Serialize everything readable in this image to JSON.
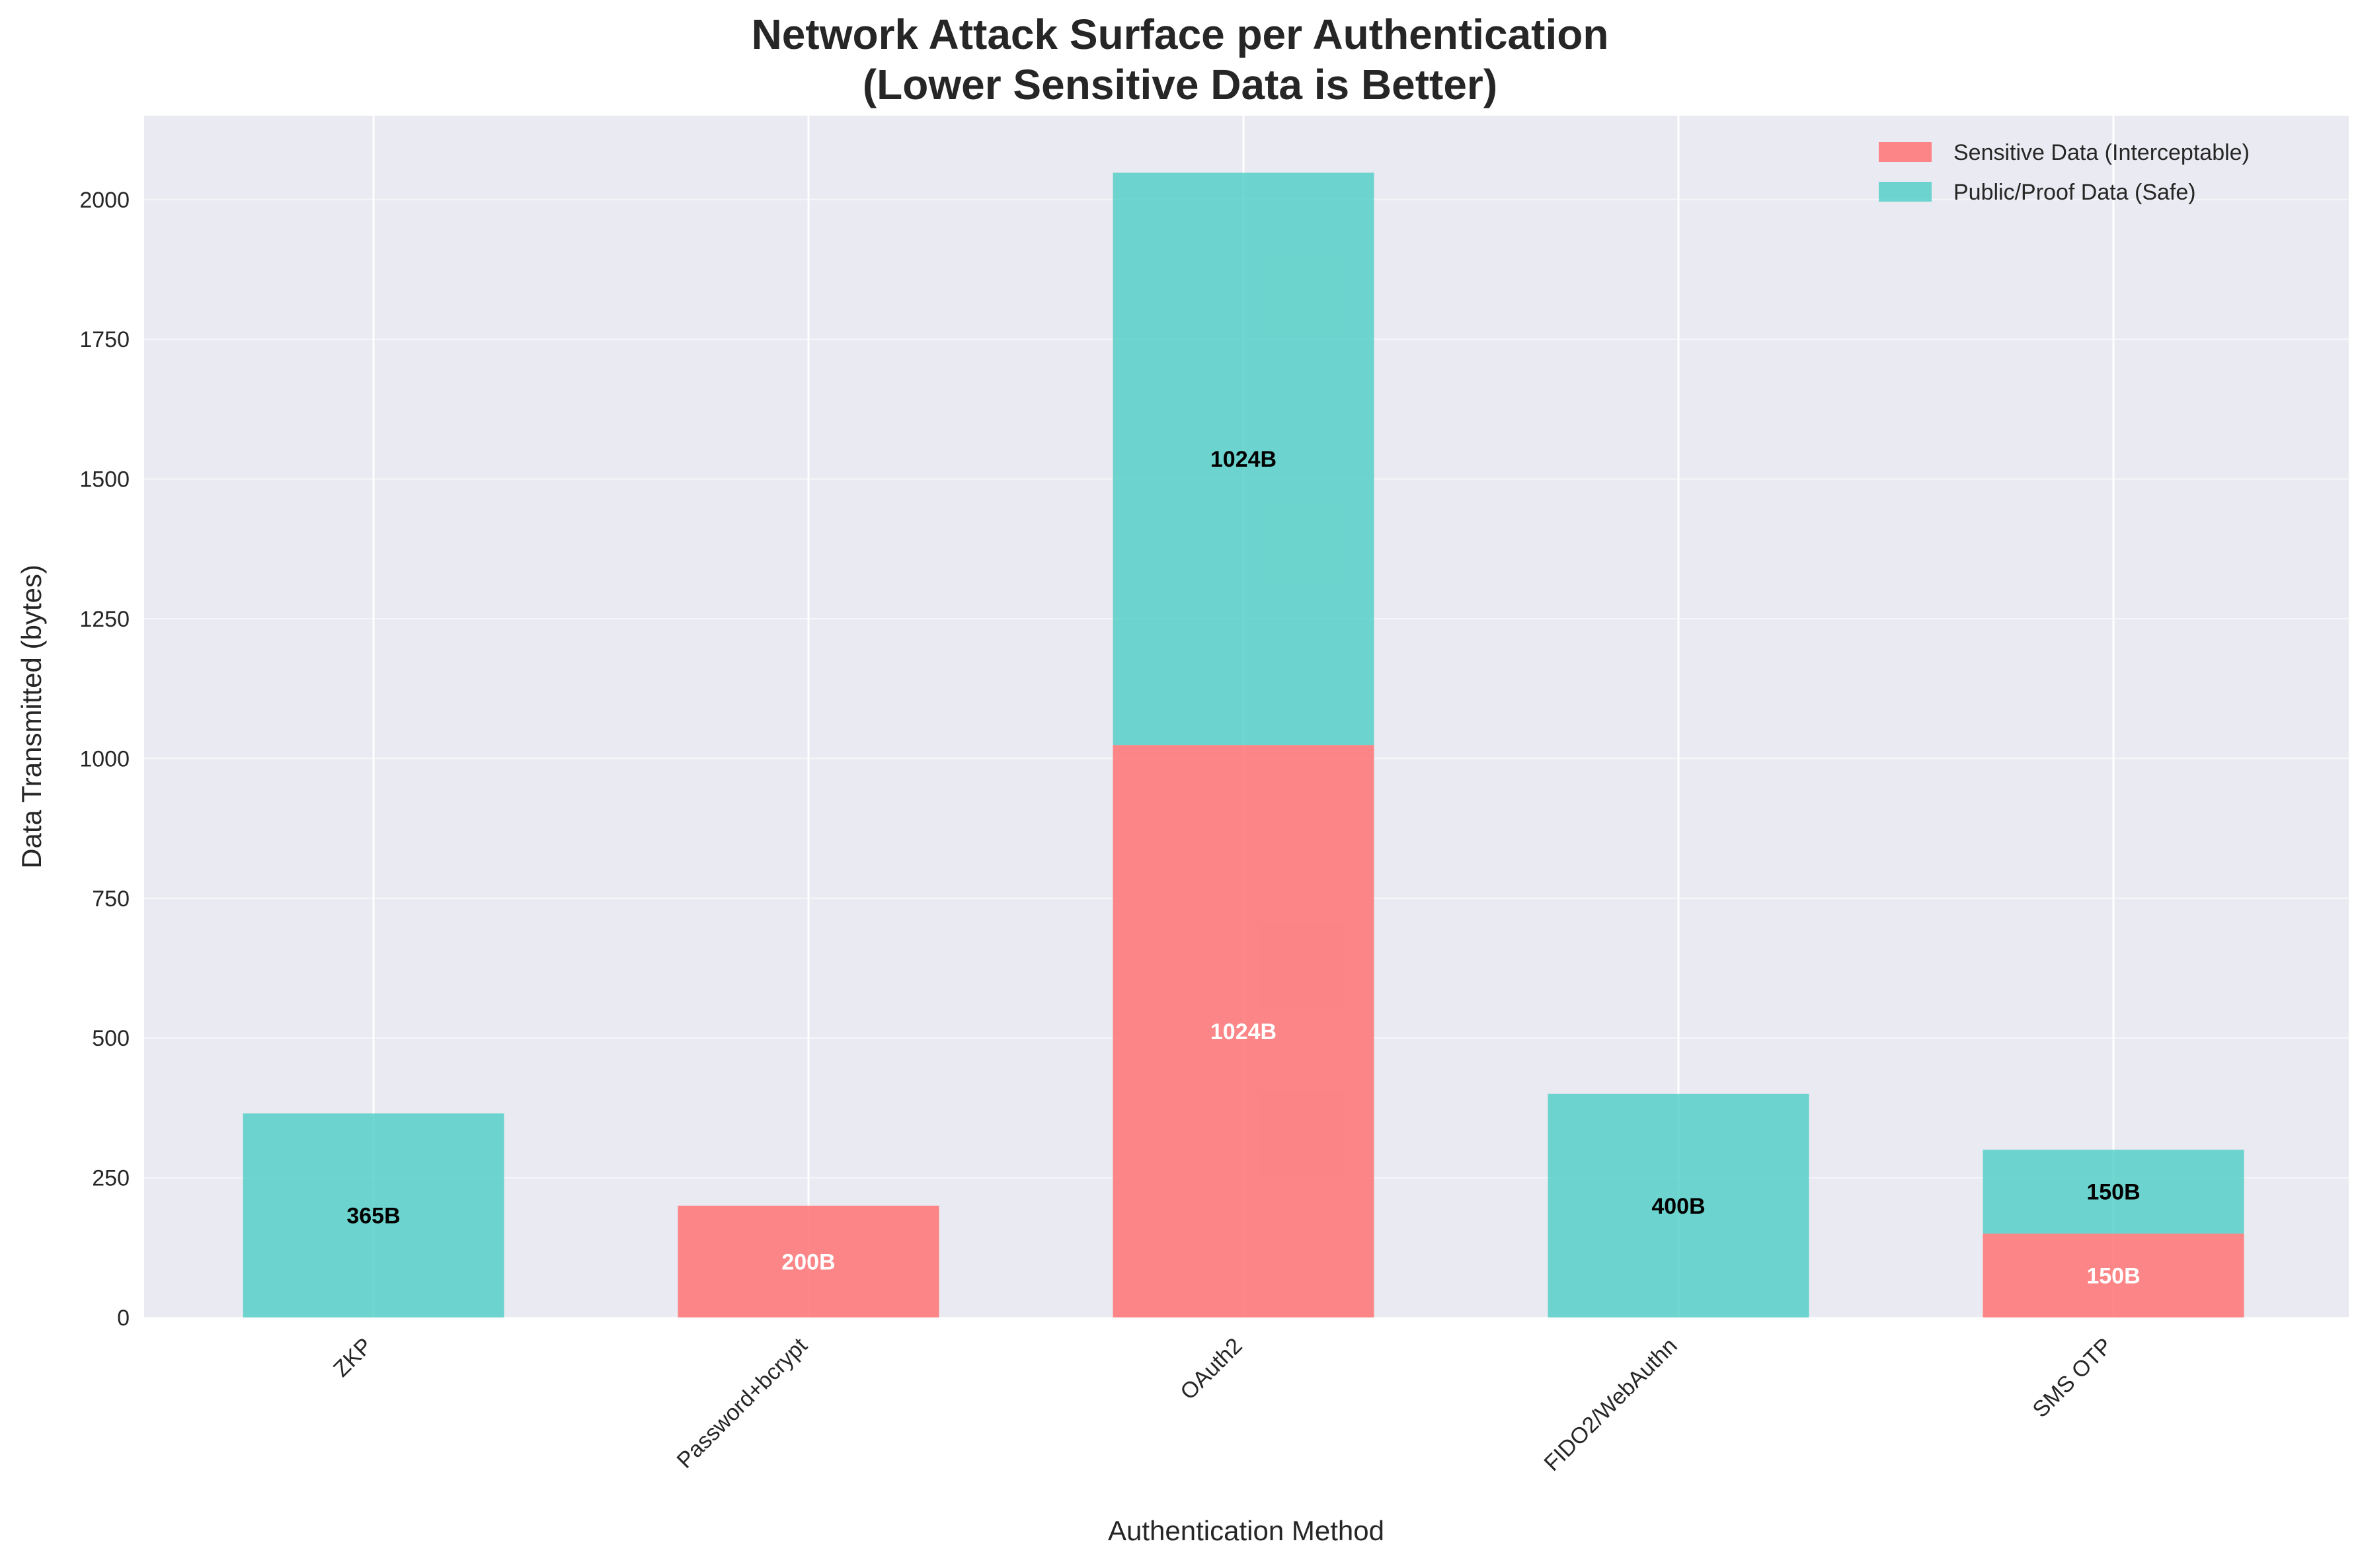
{
  "chart_data": {
    "type": "bar",
    "stacked": true,
    "title_line1": "Network Attack Surface per Authentication",
    "title_line2": "(Lower Sensitive Data is Better)",
    "xlabel": "Authentication Method",
    "ylabel": "Data Transmitted (bytes)",
    "categories": [
      "ZKP",
      "Password+bcrypt",
      "OAuth2",
      "FIDO2/WebAuthn",
      "SMS OTP"
    ],
    "series": [
      {
        "name": "Sensitive Data (Interceptable)",
        "color": "#ff6b6b",
        "label_color": "#ffffff",
        "values": [
          0,
          200,
          1024,
          0,
          150
        ],
        "labels": [
          "",
          "200B",
          "1024B",
          "",
          "150B"
        ]
      },
      {
        "name": "Public/Proof Data (Safe)",
        "color": "#4ecdc4",
        "label_color": "#000000",
        "values": [
          365,
          0,
          1024,
          400,
          150
        ],
        "labels": [
          "365B",
          "",
          "1024B",
          "400B",
          "150B"
        ]
      }
    ],
    "ylim": [
      0,
      2150
    ],
    "yticks": [
      0,
      250,
      500,
      750,
      1000,
      1250,
      1500,
      1750,
      2000
    ],
    "ytick_labels": [
      "0",
      "250",
      "500",
      "750",
      "1000",
      "1250",
      "1500",
      "1750",
      "2000"
    ],
    "grid": true,
    "legend_position": "top-right",
    "plot_background": "#eaeaf2",
    "grid_color": "#ffffff"
  }
}
